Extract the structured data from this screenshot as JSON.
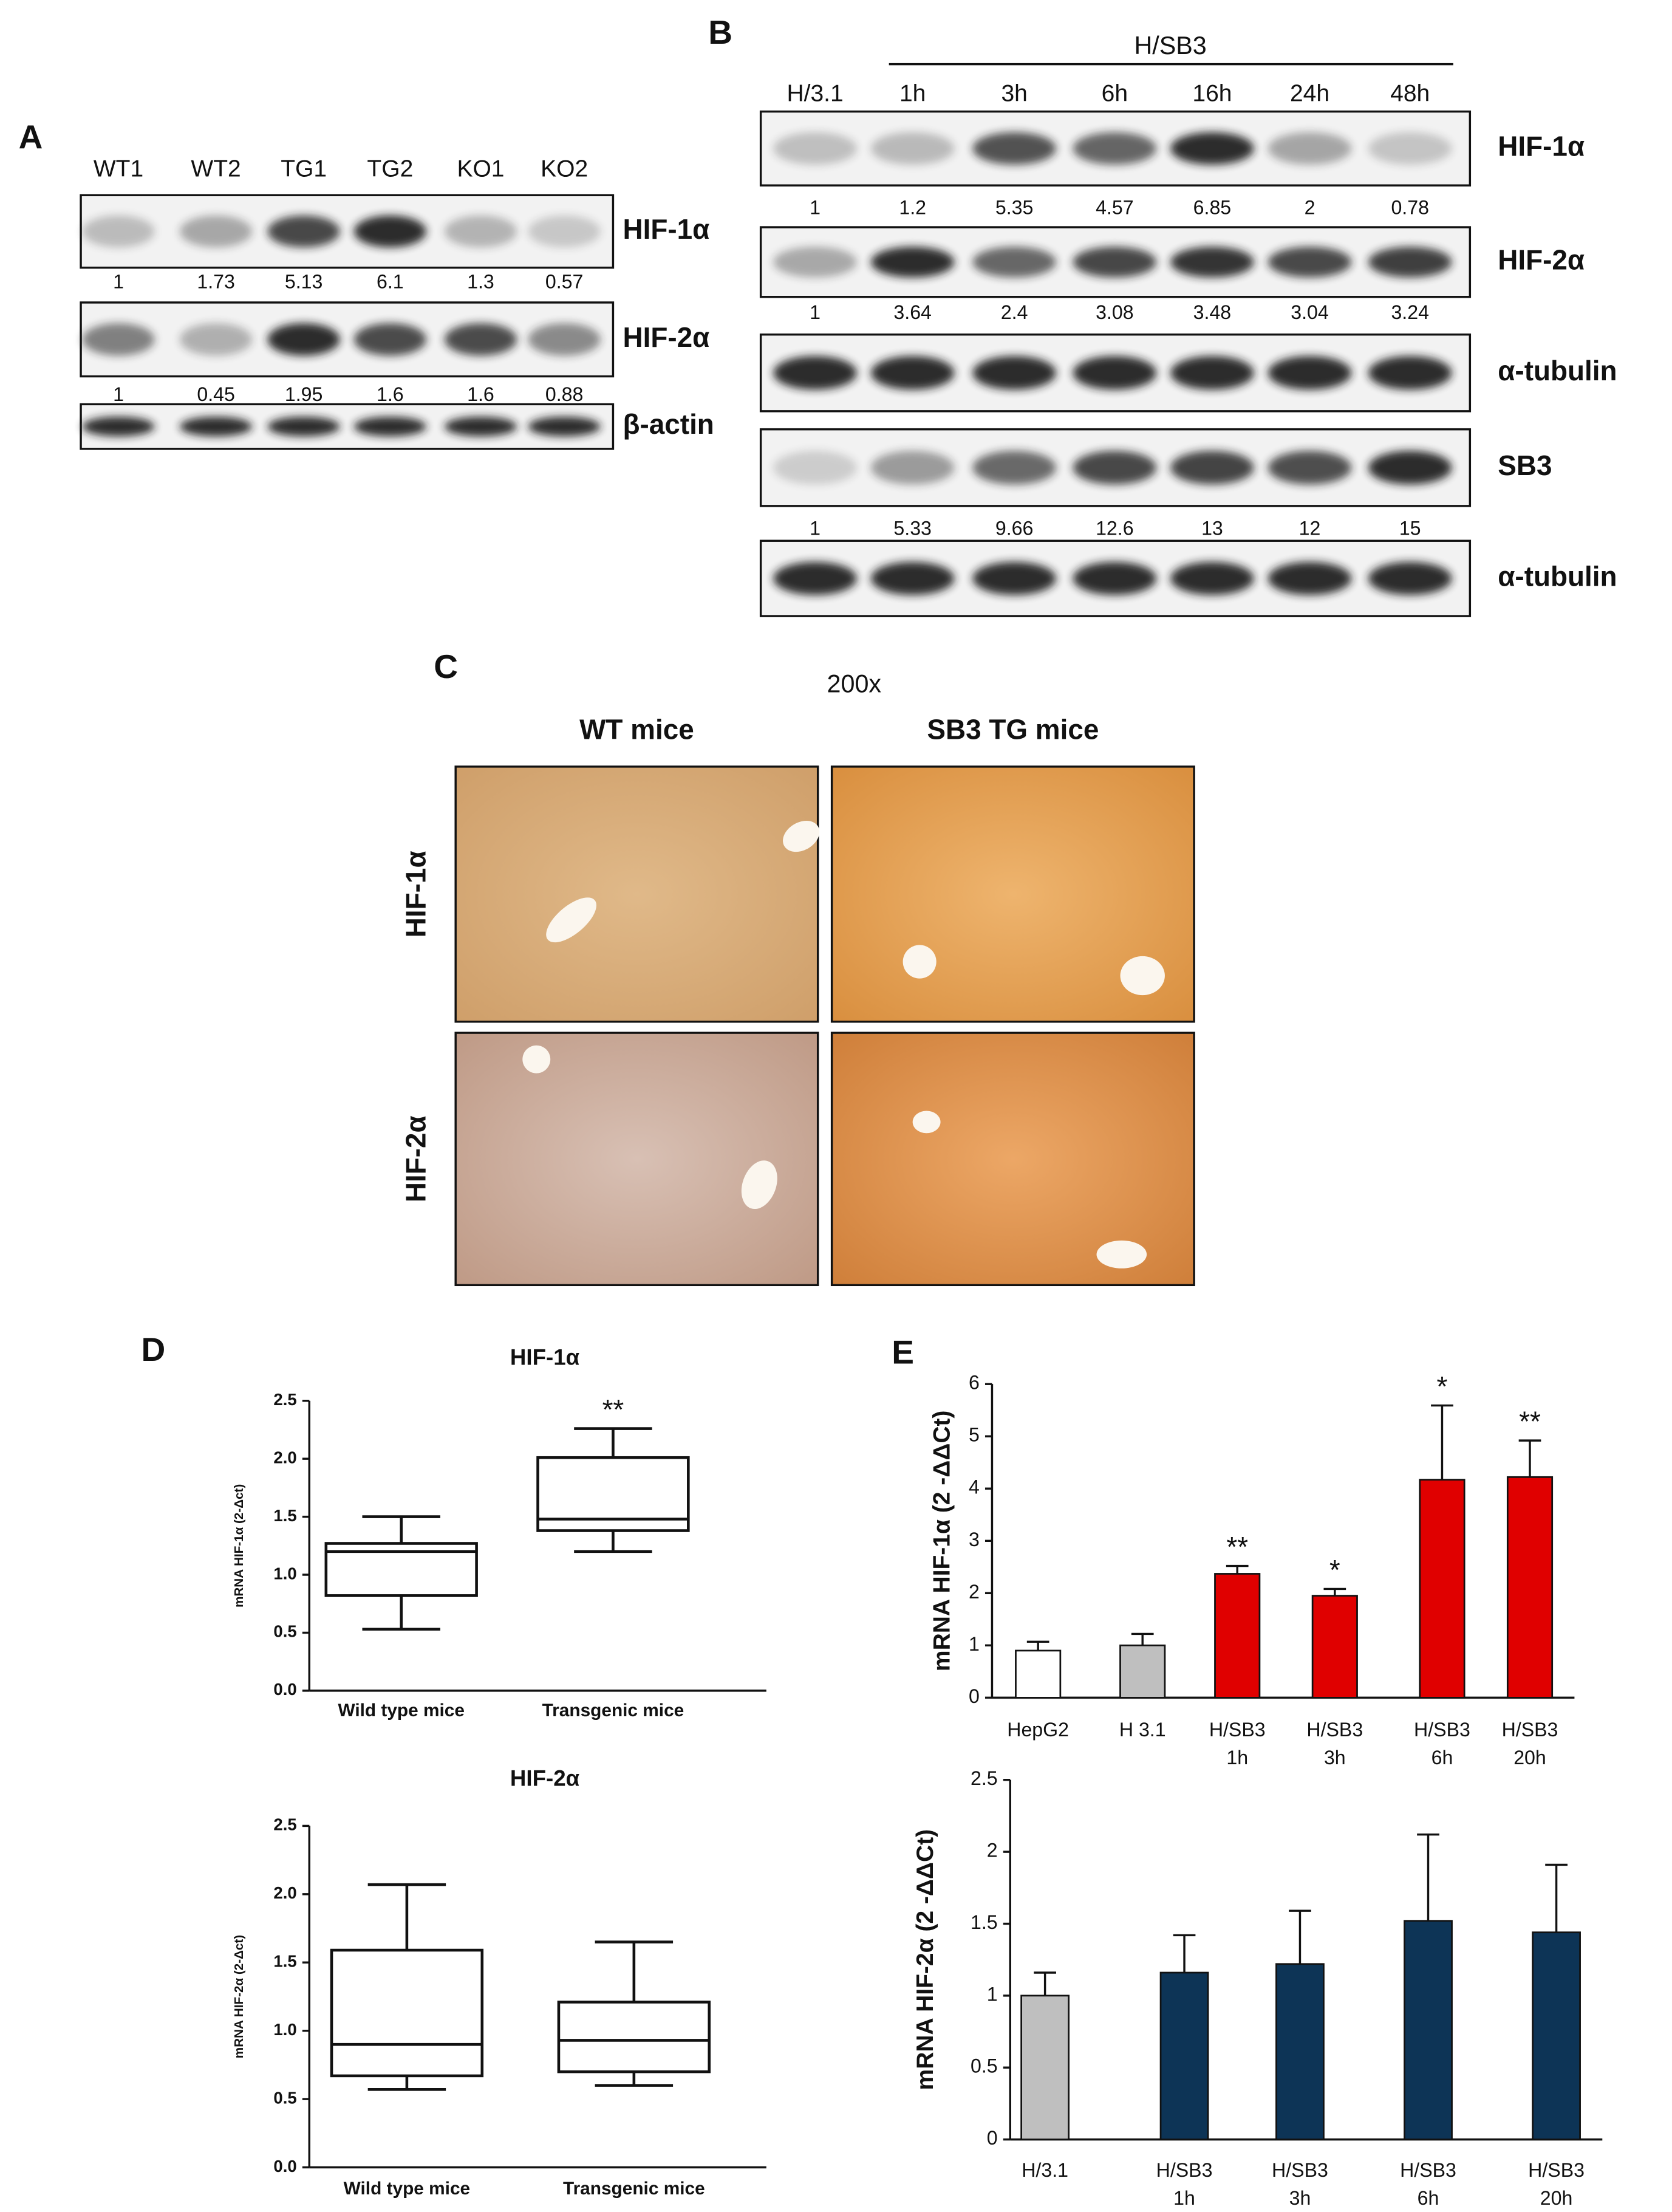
{
  "panel_a": {
    "letter": "A",
    "lanes": [
      "WT1",
      "WT2",
      "TG1",
      "TG2",
      "KO1",
      "KO2"
    ],
    "blots": [
      {
        "label": "HIF-1α",
        "quant": [
          1,
          1.73,
          5.13,
          6.1,
          1.3,
          0.57
        ]
      },
      {
        "label": "HIF-2α",
        "quant": [
          1,
          0.45,
          1.95,
          1.6,
          1.6,
          0.88
        ]
      },
      {
        "label": "β-actin"
      }
    ]
  },
  "panel_b": {
    "letter": "B",
    "header": "H/SB3",
    "lanes": [
      "H/3.1",
      "1h",
      "3h",
      "6h",
      "16h",
      "24h",
      "48h"
    ],
    "blots": [
      {
        "label": "HIF-1α",
        "quant": [
          1,
          1.2,
          5.35,
          4.57,
          6.85,
          2,
          0.78
        ]
      },
      {
        "label": "HIF-2α",
        "quant": [
          1,
          3.64,
          2.4,
          3.08,
          3.48,
          3.04,
          3.24
        ]
      },
      {
        "label": "α-tubulin"
      },
      {
        "label": "SB3",
        "quant": [
          1,
          5.33,
          9.66,
          12.6,
          13,
          12,
          15
        ]
      },
      {
        "label": "α-tubulin"
      }
    ]
  },
  "panel_c": {
    "letter": "C",
    "magnification": "200x",
    "columns": [
      "WT mice",
      "SB3 TG mice"
    ],
    "rows": [
      "HIF-1α",
      "HIF-2α"
    ]
  },
  "panel_letters": {
    "d": "D",
    "e": "E"
  },
  "chart_data": [
    {
      "type": "box",
      "title": "HIF-1α",
      "ylabel": "mRNA HIF-1α (2-Δct)",
      "categories": [
        "Wild type mice",
        "Transgenic mice"
      ],
      "boxes": [
        {
          "min": 0.53,
          "q1": 0.82,
          "median": 1.2,
          "q3": 1.27,
          "max": 1.5
        },
        {
          "min": 1.2,
          "q1": 1.38,
          "median": 1.48,
          "q3": 2.01,
          "max": 2.26
        }
      ],
      "annotations": [
        null,
        "**"
      ],
      "ylim": [
        0,
        2.5
      ],
      "yticks": [
        {
          "value": 0,
          "label": "0.0"
        },
        {
          "value": 0.5,
          "label": "0.5"
        },
        {
          "value": 1,
          "label": "1.0"
        },
        {
          "value": 1.5,
          "label": "1.5"
        },
        {
          "value": 2,
          "label": "2.0"
        },
        {
          "value": 2.5,
          "label": "2.5"
        }
      ]
    },
    {
      "type": "box",
      "title": "HIF-2α",
      "ylabel": "mRNA HIF-2α (2-Δct)",
      "categories": [
        "Wild type mice",
        "Transgenic mice"
      ],
      "boxes": [
        {
          "min": 0.57,
          "q1": 0.67,
          "median": 0.9,
          "q3": 1.59,
          "max": 2.07
        },
        {
          "min": 0.6,
          "q1": 0.7,
          "median": 0.93,
          "q3": 1.21,
          "max": 1.65
        }
      ],
      "ylim": [
        0,
        2.5
      ],
      "yticks": [
        {
          "value": 0,
          "label": "0.0"
        },
        {
          "value": 0.5,
          "label": "0.5"
        },
        {
          "value": 1,
          "label": "1.0"
        },
        {
          "value": 1.5,
          "label": "1.5"
        },
        {
          "value": 2,
          "label": "2.0"
        },
        {
          "value": 2.5,
          "label": "2.5"
        }
      ]
    },
    {
      "type": "bar",
      "ylabel": "mRNA HIF-1α (2 -ΔΔCt)",
      "categories": [
        [
          "HepG2"
        ],
        [
          "H 3.1"
        ],
        [
          "H/SB3",
          "1h"
        ],
        [
          "H/SB3",
          "3h"
        ],
        [
          "H/SB3",
          "6h"
        ],
        [
          "H/SB3",
          "20h"
        ]
      ],
      "values": [
        0.9,
        1.0,
        2.37,
        1.95,
        4.17,
        4.22
      ],
      "errors": [
        0.17,
        0.22,
        0.15,
        0.13,
        1.42,
        0.7
      ],
      "colors": [
        "#ffffff",
        "#bfbfbf",
        "#e00000",
        "#e00000",
        "#e00000",
        "#e00000"
      ],
      "annotations": [
        null,
        null,
        "**",
        "*",
        "*",
        "**"
      ],
      "ylim": [
        0,
        6
      ],
      "yticks": [
        0,
        1,
        2,
        3,
        4,
        5,
        6
      ]
    },
    {
      "type": "bar",
      "ylabel": "mRNA HIF-2α (2 -ΔΔCt)",
      "categories": [
        [
          "H/3.1"
        ],
        [
          "H/SB3",
          "1h"
        ],
        [
          "H/SB3",
          "3h"
        ],
        [
          "H/SB3",
          "6h"
        ],
        [
          "H/SB3",
          "20h"
        ]
      ],
      "values": [
        1.0,
        1.16,
        1.22,
        1.52,
        1.44
      ],
      "errors": [
        0.16,
        0.26,
        0.37,
        0.6,
        0.47
      ],
      "colors": [
        "#bfbfbf",
        "#0d3456",
        "#0d3456",
        "#0d3456",
        "#0d3456"
      ],
      "ylim": [
        0,
        2.5
      ],
      "yticks": [
        0,
        0.5,
        1,
        1.5,
        2,
        2.5
      ]
    }
  ]
}
